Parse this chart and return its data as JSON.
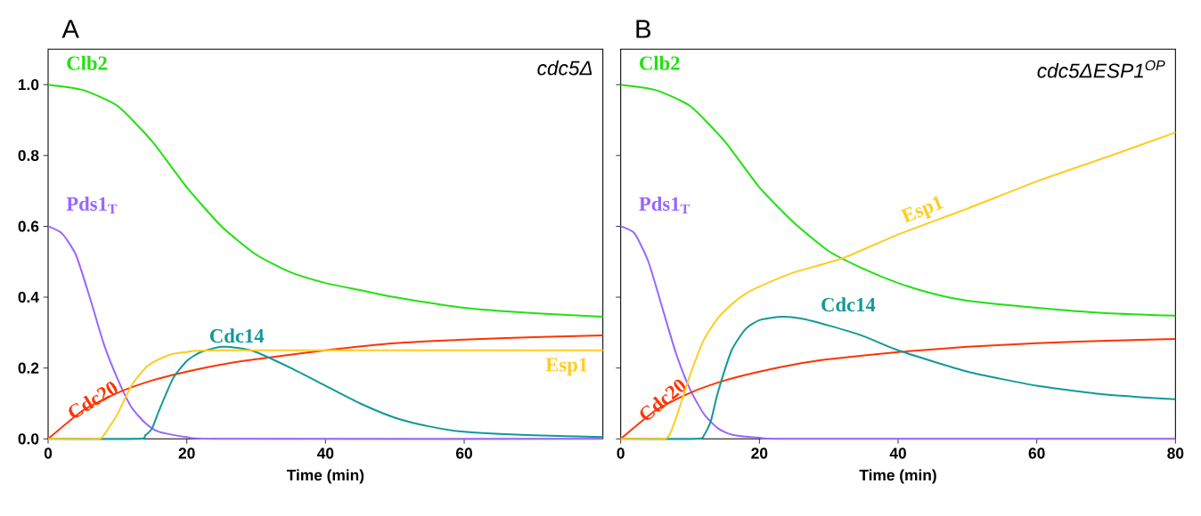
{
  "chart_data": [
    {
      "type": "line",
      "title": "A",
      "annotations": [
        "cdc5Δ"
      ],
      "xlabel": "Time (min)",
      "xlim": [
        0,
        80
      ],
      "xticks": [
        0,
        20,
        40,
        60
      ],
      "ylim": [
        0,
        1.1
      ],
      "yticks": [
        {
          "value": 0,
          "label": "0.0"
        },
        0.2,
        0.4,
        0.6,
        0.8,
        {
          "value": 1.0,
          "label": "1.0"
        }
      ],
      "series": [
        {
          "name": "Clb2",
          "color": "#22e011",
          "x": [
            0,
            5,
            10,
            15,
            20,
            25,
            30,
            35,
            40,
            45,
            50,
            60,
            70,
            80
          ],
          "values": [
            1.0,
            0.985,
            0.94,
            0.84,
            0.71,
            0.6,
            0.52,
            0.47,
            0.44,
            0.42,
            0.4,
            0.37,
            0.355,
            0.345
          ]
        },
        {
          "name": "Pds1$_{T}$",
          "color": "#9966ff",
          "x": [
            0,
            2,
            4,
            6,
            8,
            10,
            12,
            14,
            16,
            20,
            25,
            80
          ],
          "values": [
            0.6,
            0.58,
            0.52,
            0.4,
            0.27,
            0.17,
            0.09,
            0.045,
            0.02,
            0.005,
            0,
            0
          ]
        },
        {
          "name": "Cdc20",
          "color": "#ff3300",
          "x": [
            0,
            5,
            10,
            15,
            20,
            25,
            30,
            40,
            50,
            60,
            70,
            80
          ],
          "values": [
            0,
            0.08,
            0.13,
            0.165,
            0.19,
            0.21,
            0.225,
            0.25,
            0.27,
            0.28,
            0.287,
            0.292
          ]
        },
        {
          "name": "Cdc14",
          "color": "#119999",
          "x": [
            0,
            13,
            14,
            15,
            16,
            18,
            20,
            22,
            25,
            28,
            30,
            35,
            40,
            45,
            50,
            55,
            60,
            70,
            80
          ],
          "values": [
            0,
            0,
            0.01,
            0.03,
            0.08,
            0.17,
            0.22,
            0.245,
            0.26,
            0.255,
            0.245,
            0.2,
            0.15,
            0.1,
            0.06,
            0.035,
            0.02,
            0.01,
            0.005
          ]
        },
        {
          "name": "Esp1",
          "color": "#ffcc22",
          "x": [
            0,
            7,
            8,
            10,
            12,
            14,
            16,
            18,
            20,
            25,
            80
          ],
          "values": [
            0,
            0,
            0.01,
            0.07,
            0.15,
            0.2,
            0.225,
            0.24,
            0.245,
            0.25,
            0.25
          ]
        }
      ]
    },
    {
      "type": "line",
      "title": "B",
      "annotations": [
        "cdc5ΔESP1$^{OP}$"
      ],
      "xlabel": "Time (min)",
      "xlim": [
        0,
        80
      ],
      "xticks": [
        0,
        20,
        40,
        60,
        80
      ],
      "ylim": [
        0,
        1.1
      ],
      "yticks": [
        0,
        0.2,
        0.4,
        0.6,
        0.8,
        1.0
      ],
      "tick_labels": "x",
      "series": [
        {
          "name": "Clb2",
          "color": "#22e011",
          "x": [
            0,
            5,
            10,
            15,
            20,
            25,
            30,
            35,
            40,
            45,
            50,
            60,
            70,
            80
          ],
          "values": [
            1.0,
            0.985,
            0.94,
            0.84,
            0.71,
            0.61,
            0.53,
            0.48,
            0.44,
            0.41,
            0.39,
            0.37,
            0.355,
            0.348
          ]
        },
        {
          "name": "Pds1$_{T}$",
          "color": "#9966ff",
          "x": [
            0,
            2,
            4,
            6,
            8,
            10,
            12,
            14,
            16,
            20,
            25,
            80
          ],
          "values": [
            0.6,
            0.58,
            0.5,
            0.37,
            0.24,
            0.14,
            0.07,
            0.03,
            0.012,
            0.003,
            0,
            0
          ]
        },
        {
          "name": "Cdc20",
          "color": "#ff3300",
          "x": [
            0,
            5,
            10,
            15,
            20,
            25,
            30,
            40,
            50,
            60,
            70,
            80
          ],
          "values": [
            0,
            0.08,
            0.13,
            0.165,
            0.19,
            0.21,
            0.225,
            0.245,
            0.26,
            0.27,
            0.277,
            0.282
          ]
        },
        {
          "name": "Cdc14",
          "color": "#119999",
          "x": [
            0,
            11,
            12,
            13,
            14,
            16,
            18,
            20,
            23,
            26,
            30,
            35,
            40,
            50,
            60,
            70,
            80
          ],
          "values": [
            0,
            0,
            0.01,
            0.05,
            0.13,
            0.25,
            0.31,
            0.335,
            0.345,
            0.34,
            0.32,
            0.29,
            0.25,
            0.19,
            0.15,
            0.125,
            0.112
          ]
        },
        {
          "name": "Esp1",
          "color": "#ffcc22",
          "x": [
            0,
            6,
            7,
            8,
            10,
            12,
            14,
            16,
            18,
            20,
            25,
            32,
            40,
            50,
            60,
            70,
            80
          ],
          "values": [
            0,
            0,
            0.01,
            0.06,
            0.18,
            0.28,
            0.34,
            0.38,
            0.41,
            0.43,
            0.47,
            0.51,
            0.577,
            0.65,
            0.727,
            0.795,
            0.865
          ]
        }
      ]
    }
  ]
}
